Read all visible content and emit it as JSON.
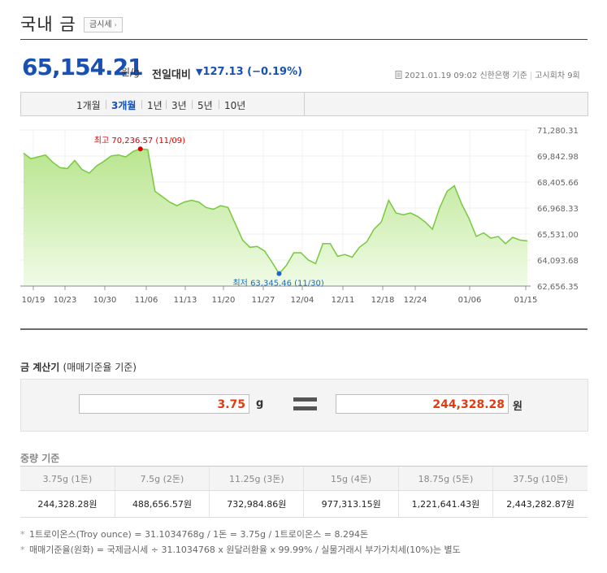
{
  "header": {
    "title": "국내 금",
    "tag_label": "금시세",
    "tag_arrow": "›"
  },
  "price": {
    "value": "65,154.21",
    "unit": "원/g",
    "compare_label": "전일대비",
    "change_arrow": "▼",
    "change": "127.13 (−0.19%)"
  },
  "meta": {
    "icon": "document-icon",
    "datetime": "2021.01.19 09:02",
    "source": "신한은행 기준",
    "notice": "고시회차 9회"
  },
  "periods": [
    {
      "label": "1개월",
      "active": false
    },
    {
      "label": "3개월",
      "active": true
    },
    {
      "label": "1년",
      "active": false
    },
    {
      "label": "3년",
      "active": false
    },
    {
      "label": "5년",
      "active": false
    },
    {
      "label": "10년",
      "active": false
    }
  ],
  "chart_data": {
    "type": "area",
    "ylim": [
      62656.35,
      71280.31
    ],
    "y_ticks": [
      "71,280.31",
      "69,842.98",
      "68,405.66",
      "66,968.33",
      "65,531.00",
      "64,093.68",
      "62,656.35"
    ],
    "x_ticks": [
      "10/19",
      "10/23",
      "10/30",
      "11/06",
      "11/13",
      "11/20",
      "11/27",
      "12/04",
      "12/11",
      "12/18",
      "12/24",
      "01/06",
      "01/15"
    ],
    "colors": {
      "line": "#78c93e",
      "fill_top": "#b9e58f",
      "fill_bottom": "#f0fbe6",
      "max_marker": "#d90000",
      "min_marker": "#1a6bc7"
    },
    "series": [
      {
        "values": [
          70000,
          69700,
          69800,
          69900,
          69500,
          69200,
          69150,
          69600,
          69100,
          68900,
          69300,
          69550,
          69850,
          69900,
          69800,
          70100,
          70236.57,
          70200,
          67900,
          67600,
          67300,
          67100,
          67300,
          67400,
          67300,
          67000,
          66900,
          67100,
          67000,
          66100,
          65200,
          64800,
          64850,
          64600,
          64000,
          63345.46,
          63800,
          64500,
          64500,
          64100,
          63900,
          65000,
          65000,
          64300,
          64400,
          64250,
          64800,
          65100,
          65800,
          66200,
          67400,
          66700,
          66600,
          66700,
          66500,
          66200,
          65800,
          67000,
          67900,
          68200,
          67200,
          66400,
          65400,
          65600,
          65300,
          65400,
          65000,
          65350,
          65200,
          65154.21
        ]
      }
    ],
    "max_label": "최고 70,236.57 (11/09)",
    "min_label": "최저 63,345.46 (11/30)"
  },
  "calculator": {
    "title": "금 계산기",
    "subtitle": "(매매기준율 기준)",
    "weight_value": "3.75",
    "weight_unit": "g",
    "price_value": "244,328.28",
    "price_unit": "원"
  },
  "weight_table": {
    "title": "중량 기준",
    "headers": [
      "3.75g (1돈)",
      "7.5g (2돈)",
      "11.25g (3돈)",
      "15g (4돈)",
      "18.75g (5돈)",
      "37.5g (10돈)"
    ],
    "values": [
      "244,328.28원",
      "488,656.57원",
      "732,984.86원",
      "977,313.15원",
      "1,221,641.43원",
      "2,443,282.87원"
    ]
  },
  "notes": [
    "1트로이온스(Troy ounce) = 31.1034768g / 1돈 = 3.75g / 1트로이온스 = 8.294돈",
    "매매기준율(원화) = 국제금시세 ÷ 31.1034768 x 원달러환율 x 99.99% / 실물거래시 부가가치세(10%)는 별도"
  ]
}
